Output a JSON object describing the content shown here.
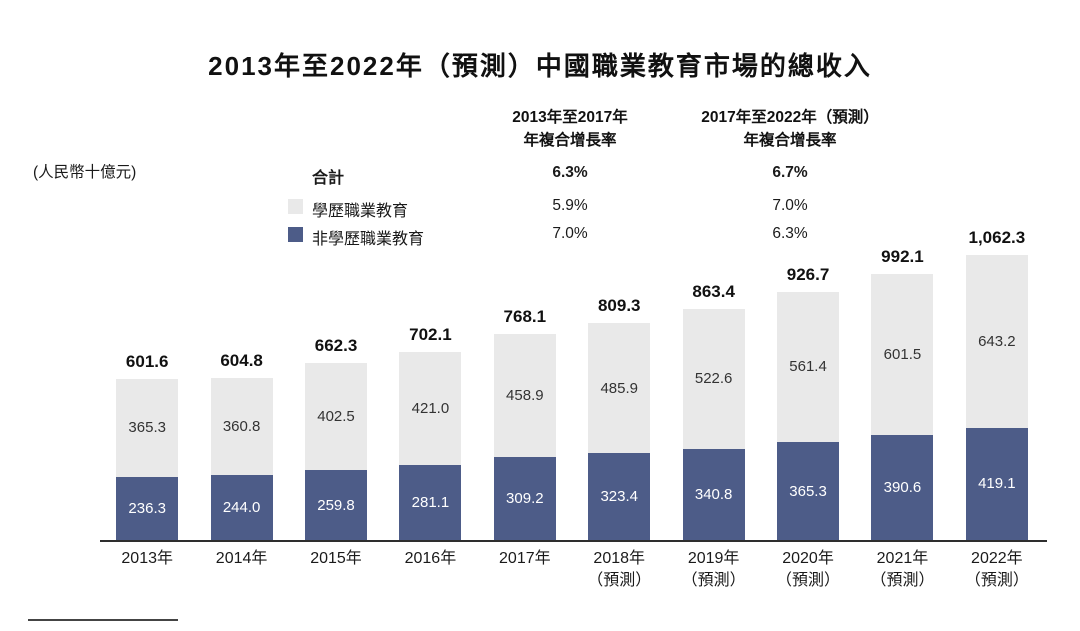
{
  "title": "2013年至2022年（預測）中國職業教育市場的總收入",
  "unit_label": "(人民幣十億元)",
  "cagr_table": {
    "col1_header_line1": "2013年至2017年",
    "col1_header_line2": "年複合增長率",
    "col2_header_line1": "2017年至2022年（預測）",
    "col2_header_line2": "年複合增長率"
  },
  "legend": {
    "rows": [
      {
        "label": "合計",
        "cagr_2013_2017": "6.3%",
        "cagr_2017_2022": "6.7%"
      },
      {
        "label": "學歷職業教育",
        "swatch_color": "#e9e9e9",
        "cagr_2013_2017": "5.9%",
        "cagr_2017_2022": "7.0%"
      },
      {
        "label": "非學歷職業教育",
        "swatch_color": "#4d5c88",
        "cagr_2013_2017": "7.0%",
        "cagr_2017_2022": "6.3%"
      }
    ]
  },
  "chart_data": {
    "type": "bar",
    "stacked": true,
    "title": "2013年至2022年（預測）中國職業教育市場的總收入",
    "ylabel": "(人民幣十億元)",
    "ylim": [
      0,
      1100
    ],
    "grid": false,
    "legend_position": "upper-left",
    "categories": [
      "2013年",
      "2014年",
      "2015年",
      "2016年",
      "2017年",
      "2018年\n（預測）",
      "2019年\n（預測）",
      "2020年\n（預測）",
      "2021年\n（預測）",
      "2022年\n（預測）"
    ],
    "series": [
      {
        "name": "非學歷職業教育",
        "color": "#4d5c88",
        "values": [
          236.3,
          244.0,
          259.8,
          281.1,
          309.2,
          323.4,
          340.8,
          365.3,
          390.6,
          419.1
        ]
      },
      {
        "name": "學歷職業教育",
        "color": "#e9e9e9",
        "values": [
          365.3,
          360.8,
          402.5,
          421.0,
          458.9,
          485.9,
          522.6,
          561.4,
          601.5,
          643.2
        ]
      }
    ],
    "totals": [
      "601.6",
      "604.8",
      "662.3",
      "702.1",
      "768.1",
      "809.3",
      "863.4",
      "926.7",
      "992.1",
      "1,062.3"
    ]
  }
}
